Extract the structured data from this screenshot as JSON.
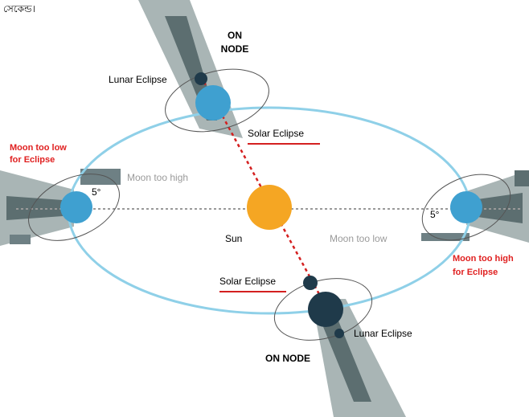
{
  "top_text": "সেকেন্ড।",
  "labels": {
    "on_node_top": [
      "ON",
      "NODE"
    ],
    "lunar_eclipse_top": "Lunar Eclipse",
    "solar_eclipse_top": "Solar Eclipse",
    "moon_too_low_left": [
      "Moon too low",
      "for Eclipse"
    ],
    "moon_too_high_left": "Moon too high",
    "angle_left": "5°",
    "sun": "Sun",
    "moon_too_low_right": "Moon too low",
    "angle_right": "5°",
    "moon_too_high_right": [
      "Moon too high",
      "for Eclipse"
    ],
    "solar_eclipse_bottom": "Solar Eclipse",
    "lunar_eclipse_bottom": "Lunar Eclipse",
    "on_node_bottom": "ON NODE"
  }
}
